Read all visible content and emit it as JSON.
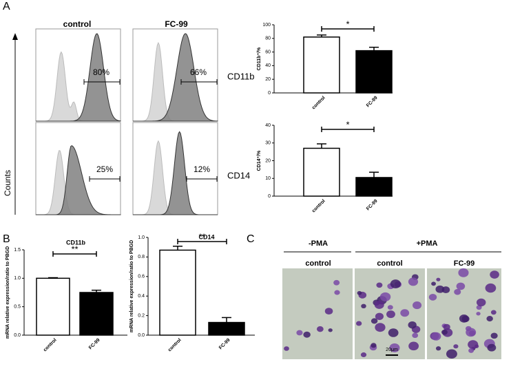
{
  "panels": {
    "a": "A",
    "b": "B",
    "c": "C"
  },
  "flow": {
    "columns": [
      "control",
      "FC-99"
    ],
    "rows": [
      "CD11b",
      "CD14"
    ],
    "percents": [
      [
        "80%",
        "66%"
      ],
      [
        "25%",
        "12%"
      ]
    ],
    "y_label": "Counts"
  },
  "micrograph": {
    "groups": [
      "-PMA",
      "+PMA"
    ],
    "columns": [
      "control",
      "control",
      "FC-99"
    ],
    "scale_bar": "20μm"
  },
  "chart_data": [
    {
      "type": "bar",
      "ylabel": "CD11b⁺/%",
      "categories": [
        "control",
        "FC-99"
      ],
      "values": [
        82,
        62
      ],
      "errors": [
        3,
        5
      ],
      "colors": [
        "#ffffff",
        "#000000"
      ],
      "ylim": [
        0,
        100
      ],
      "yticks": [
        0,
        20,
        40,
        60,
        80,
        100
      ],
      "annotation": "*"
    },
    {
      "type": "bar",
      "ylabel": "CD14⁺/%",
      "categories": [
        "control",
        "FC-99"
      ],
      "values": [
        27,
        10.5
      ],
      "errors": [
        2.5,
        3
      ],
      "colors": [
        "#ffffff",
        "#000000"
      ],
      "ylim": [
        0,
        40
      ],
      "yticks": [
        0,
        10,
        20,
        30,
        40
      ],
      "annotation": "*"
    },
    {
      "type": "bar",
      "title": "CD11b",
      "ylabel": "mRNA relative expression/ratio to PBGD",
      "categories": [
        "control",
        "FC-99"
      ],
      "values": [
        1.0,
        0.75
      ],
      "errors": [
        0.01,
        0.04
      ],
      "colors": [
        "#ffffff",
        "#000000"
      ],
      "ylim": [
        0,
        1.5
      ],
      "yticks": [
        {
          "value": 0,
          "label": "0.0"
        },
        {
          "value": 0.5,
          "label": "0.5"
        },
        {
          "value": 1,
          "label": "1.0"
        },
        {
          "value": 1.5,
          "label": "1.5"
        }
      ],
      "annotation": "**"
    },
    {
      "type": "bar",
      "title": "CD14",
      "ylabel": "mRNA relative expression/ratio to PBGD",
      "categories": [
        "control",
        "FC-99"
      ],
      "values": [
        0.87,
        0.13
      ],
      "errors": [
        0.04,
        0.05
      ],
      "colors": [
        "#ffffff",
        "#000000"
      ],
      "ylim": [
        0,
        1.0
      ],
      "yticks": [
        {
          "value": 0,
          "label": "0.0"
        },
        {
          "value": 0.2,
          "label": "0.2"
        },
        {
          "value": 0.4,
          "label": "0.4"
        },
        {
          "value": 0.6,
          "label": "0.6"
        },
        {
          "value": 0.8,
          "label": "0.8"
        },
        {
          "value": 1,
          "label": "1.0"
        }
      ],
      "annotation": "**"
    }
  ]
}
